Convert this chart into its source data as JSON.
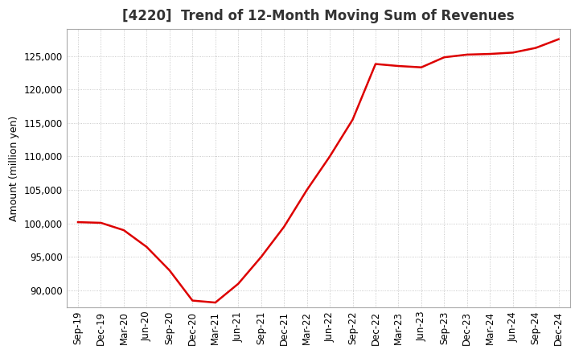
{
  "title": "[4220]  Trend of 12-Month Moving Sum of Revenues",
  "ylabel": "Amount (million yen)",
  "line_color": "#dd0000",
  "line_width": 1.8,
  "background_color": "#ffffff",
  "plot_bg_color": "#ffffff",
  "grid_color": "#bbbbbb",
  "ylim": [
    87500,
    129000
  ],
  "yticks": [
    90000,
    95000,
    100000,
    105000,
    110000,
    115000,
    120000,
    125000
  ],
  "x_labels": [
    "Sep-19",
    "Dec-19",
    "Mar-20",
    "Jun-20",
    "Sep-20",
    "Dec-20",
    "Mar-21",
    "Jun-21",
    "Sep-21",
    "Dec-21",
    "Mar-22",
    "Jun-22",
    "Sep-22",
    "Dec-22",
    "Mar-23",
    "Jun-23",
    "Sep-23",
    "Dec-23",
    "Mar-24",
    "Jun-24",
    "Sep-24",
    "Dec-24"
  ],
  "values": [
    100200,
    100100,
    99000,
    96500,
    93000,
    88500,
    88200,
    91000,
    95000,
    99500,
    105000,
    110000,
    115500,
    123800,
    123500,
    123300,
    124800,
    125200,
    125300,
    125500,
    126200,
    127500
  ],
  "title_fontsize": 12,
  "ylabel_fontsize": 9,
  "tick_fontsize": 8.5
}
